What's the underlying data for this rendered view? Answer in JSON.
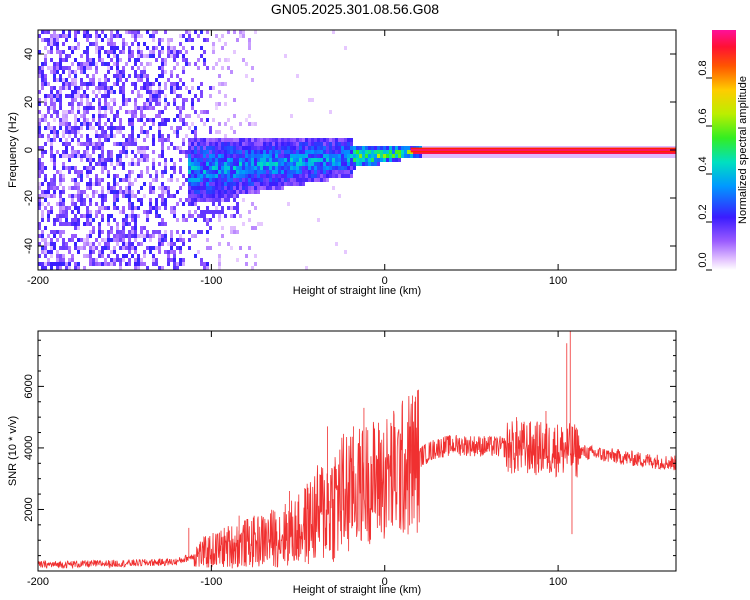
{
  "title": "GN05.2025.301.08.56.G08",
  "chart_data": [
    {
      "type": "heatmap",
      "xlabel": "Height of straight line (km)",
      "ylabel": "Frequency (Hz)",
      "xlim": [
        -200,
        168
      ],
      "ylim": [
        -50,
        50
      ],
      "xticks": [
        -200,
        -100,
        0,
        100
      ],
      "yticks": [
        -40,
        -20,
        0,
        20,
        40
      ],
      "colorbar": {
        "label": "Normalized spectral amplitude",
        "range": [
          0,
          1
        ],
        "ticks": [
          "0.0",
          "0.2",
          "0.4",
          "0.6",
          "0.8"
        ]
      },
      "regions": [
        {
          "name": "noise",
          "x_range": [
            -200,
            -100
          ],
          "freq_range": [
            -50,
            50
          ],
          "amplitude": 0.1
        },
        {
          "name": "emerging-signal",
          "x_range": [
            -115,
            -20
          ],
          "freq_range": [
            -30,
            10
          ],
          "amplitude": 0.35
        },
        {
          "name": "converging-signal",
          "x_range": [
            -20,
            15
          ],
          "freq_range": [
            -4,
            3
          ],
          "amplitude": 0.6
        },
        {
          "name": "strong-signal",
          "x_range": [
            15,
            168
          ],
          "freq_range": [
            -1,
            1
          ],
          "amplitude": 0.95
        }
      ]
    },
    {
      "type": "line",
      "xlabel": "Height of straight line (km)",
      "ylabel": "SNR (10 * v/v)",
      "xlim": [
        -200,
        168
      ],
      "ylim": [
        0,
        7800
      ],
      "xticks": [
        -200,
        -100,
        0,
        100
      ],
      "yticks": [
        2000,
        4000,
        6000
      ],
      "color": "#f03030",
      "envelope": [
        {
          "x": -200,
          "y": 200
        },
        {
          "x": -150,
          "y": 250
        },
        {
          "x": -120,
          "y": 300
        },
        {
          "x": -110,
          "y": 500
        },
        {
          "x": -90,
          "y": 800
        },
        {
          "x": -70,
          "y": 1000
        },
        {
          "x": -50,
          "y": 1300
        },
        {
          "x": -35,
          "y": 2000
        },
        {
          "x": -20,
          "y": 2600
        },
        {
          "x": -10,
          "y": 2900
        },
        {
          "x": 0,
          "y": 3000
        },
        {
          "x": 10,
          "y": 3300
        },
        {
          "x": 20,
          "y": 3700
        },
        {
          "x": 30,
          "y": 4000
        },
        {
          "x": 40,
          "y": 4100
        },
        {
          "x": 60,
          "y": 4050
        },
        {
          "x": 80,
          "y": 4000
        },
        {
          "x": 100,
          "y": 3950
        },
        {
          "x": 110,
          "y": 3900
        },
        {
          "x": 130,
          "y": 3750
        },
        {
          "x": 150,
          "y": 3600
        },
        {
          "x": 168,
          "y": 3500
        }
      ],
      "spikes": [
        {
          "x": -113,
          "y": 1400
        },
        {
          "x": -84,
          "y": 1800
        },
        {
          "x": -55,
          "y": 2600
        },
        {
          "x": -33,
          "y": 4700
        },
        {
          "x": -18,
          "y": 4700
        },
        {
          "x": -12,
          "y": 5300
        },
        {
          "x": 76,
          "y": 5000
        },
        {
          "x": 93,
          "y": 5200
        },
        {
          "x": 105,
          "y": 7400
        },
        {
          "x": 107,
          "y": 7800
        },
        {
          "x": 108,
          "y": 1200
        }
      ]
    }
  ]
}
